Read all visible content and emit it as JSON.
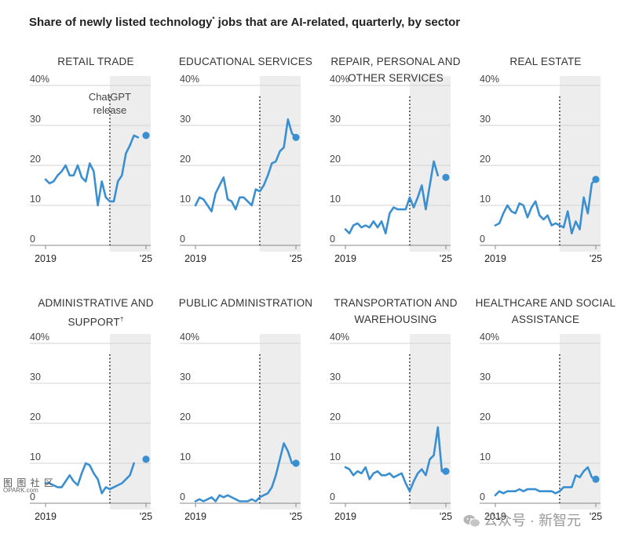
{
  "header": {
    "title_before": "Share of newly listed technology",
    "title_mark": "*",
    "title_after": " jobs that are AI-related, quarterly, by sector"
  },
  "annotation": {
    "line1": "ChatGPT",
    "line2": "release"
  },
  "colors": {
    "line": "#3a8fd1",
    "shade": "#ededed",
    "grid": "#d3d3d3",
    "axis": "#888888",
    "release_line": "#222222"
  },
  "chart_data": [
    {
      "type": "line",
      "title": "RETAIL TRADE",
      "title_mark": "",
      "x": [
        "2019",
        "",
        "",
        "",
        "",
        "",
        "",
        "",
        "",
        "",
        "",
        "",
        "",
        "",
        "",
        "",
        "",
        "",
        "",
        "",
        "",
        "",
        "",
        "",
        "",
        "'25"
      ],
      "ylim": [
        0,
        40
      ],
      "yticks": [
        "40%",
        "30",
        "20",
        "10",
        "0"
      ],
      "xtick_labels": [
        "2019",
        "'25"
      ],
      "release_index": 16,
      "values": [
        16.5,
        15.5,
        16,
        17.5,
        18.5,
        20,
        17.5,
        17.5,
        20,
        17,
        16,
        20.5,
        18.5,
        10,
        16,
        12,
        11,
        11,
        16,
        17.5,
        23,
        25,
        27.5,
        27,
        null,
        27.5
      ]
    },
    {
      "type": "line",
      "title": "EDUCATIONAL SERVICES",
      "title_mark": "",
      "x": [
        "2019",
        "",
        "",
        "",
        "",
        "",
        "",
        "",
        "",
        "",
        "",
        "",
        "",
        "",
        "",
        "",
        "",
        "",
        "",
        "",
        "",
        "",
        "",
        "",
        "",
        "'25"
      ],
      "ylim": [
        0,
        40
      ],
      "yticks": [
        "40%",
        "30",
        "20",
        "10",
        "0"
      ],
      "xtick_labels": [
        "2019",
        "'25"
      ],
      "release_index": 16,
      "values": [
        10,
        12,
        11.5,
        10,
        8.5,
        13,
        15,
        17,
        11.5,
        11,
        9,
        12,
        12,
        11,
        10,
        14,
        13.5,
        15,
        17.5,
        20.5,
        21,
        23.5,
        24.5,
        31.5,
        28,
        27
      ]
    },
    {
      "type": "line",
      "title": "REPAIR, PERSONAL AND OTHER SERVICES",
      "title_mark": "",
      "x": [
        "2019",
        "",
        "",
        "",
        "",
        "",
        "",
        "",
        "",
        "",
        "",
        "",
        "",
        "",
        "",
        "",
        "",
        "",
        "",
        "",
        "",
        "",
        "",
        "",
        "",
        "'25"
      ],
      "ylim": [
        0,
        40
      ],
      "yticks": [
        "40%",
        "30",
        "20",
        "10",
        "0"
      ],
      "xtick_labels": [
        "2019",
        "'25"
      ],
      "release_index": 16,
      "values": [
        4,
        3,
        5,
        5.5,
        4.5,
        5,
        4.5,
        6,
        4.5,
        6,
        3,
        8,
        9.5,
        9,
        9,
        9,
        12,
        9.5,
        12,
        15,
        9,
        15,
        21,
        17.5,
        null,
        17
      ]
    },
    {
      "type": "line",
      "title": "REAL ESTATE",
      "title_mark": "",
      "x": [
        "2019",
        "",
        "",
        "",
        "",
        "",
        "",
        "",
        "",
        "",
        "",
        "",
        "",
        "",
        "",
        "",
        "",
        "",
        "",
        "",
        "",
        "",
        "",
        "",
        "",
        "'25"
      ],
      "ylim": [
        0,
        40
      ],
      "yticks": [
        "40%",
        "30",
        "20",
        "10",
        "0"
      ],
      "xtick_labels": [
        "2019",
        "'25"
      ],
      "release_index": 16,
      "values": [
        5,
        5.5,
        8,
        10,
        8.5,
        8,
        10.5,
        10,
        7,
        9.5,
        11,
        7.5,
        6.5,
        7.5,
        5,
        5.5,
        5,
        4.5,
        8.5,
        3,
        6,
        4,
        12,
        8,
        15.5,
        16.5
      ]
    },
    {
      "type": "line",
      "title": "ADMINISTRATIVE AND SUPPORT",
      "title_mark": "†",
      "x": [
        "2019",
        "",
        "",
        "",
        "",
        "",
        "",
        "",
        "",
        "",
        "",
        "",
        "",
        "",
        "",
        "",
        "",
        "",
        "",
        "",
        "",
        "",
        "",
        "",
        "",
        "'25"
      ],
      "ylim": [
        0,
        40
      ],
      "yticks": [
        "40%",
        "30",
        "20",
        "10",
        "0"
      ],
      "xtick_labels": [
        "2019",
        "'25"
      ],
      "release_index": 16,
      "values": [
        5,
        5,
        4.5,
        4,
        4,
        5.5,
        7,
        5.5,
        4.5,
        7.5,
        10,
        9.5,
        7.5,
        6,
        2.5,
        4,
        3.5,
        4,
        4.5,
        5,
        6,
        7,
        10,
        null,
        null,
        11
      ]
    },
    {
      "type": "line",
      "title": "PUBLIC ADMINISTRATION",
      "title_mark": "",
      "x": [
        "2019",
        "",
        "",
        "",
        "",
        "",
        "",
        "",
        "",
        "",
        "",
        "",
        "",
        "",
        "",
        "",
        "",
        "",
        "",
        "",
        "",
        "",
        "",
        "",
        "",
        "'25"
      ],
      "ylim": [
        0,
        40
      ],
      "yticks": [
        "40%",
        "30",
        "20",
        "10",
        "0"
      ],
      "xtick_labels": [
        "2019",
        "'25"
      ],
      "release_index": 16,
      "values": [
        0.5,
        1,
        0.5,
        1,
        1.5,
        0.5,
        2,
        1.5,
        2,
        1.5,
        1,
        0.5,
        0.5,
        0.5,
        1,
        0.5,
        1.5,
        2,
        2.5,
        4,
        7,
        11,
        15,
        13,
        10,
        10
      ]
    },
    {
      "type": "line",
      "title": "TRANSPORTATION AND WAREHOUSING",
      "title_mark": "",
      "x": [
        "2019",
        "",
        "",
        "",
        "",
        "",
        "",
        "",
        "",
        "",
        "",
        "",
        "",
        "",
        "",
        "",
        "",
        "",
        "",
        "",
        "",
        "",
        "",
        "",
        "",
        "'25"
      ],
      "ylim": [
        0,
        40
      ],
      "yticks": [
        "40%",
        "30",
        "20",
        "10",
        "0"
      ],
      "xtick_labels": [
        "2019",
        "'25"
      ],
      "release_index": 16,
      "values": [
        9,
        8.5,
        7,
        8,
        7.5,
        9,
        6,
        7.5,
        8,
        7,
        7,
        7.5,
        6.5,
        7,
        7.5,
        5,
        3,
        5.5,
        7.5,
        8.5,
        7,
        11,
        12,
        19,
        8,
        8
      ]
    },
    {
      "type": "line",
      "title": "HEALTHCARE AND SOCIAL ASSISTANCE",
      "title_mark": "",
      "x": [
        "2019",
        "",
        "",
        "",
        "",
        "",
        "",
        "",
        "",
        "",
        "",
        "",
        "",
        "",
        "",
        "",
        "",
        "",
        "",
        "",
        "",
        "",
        "",
        "",
        "",
        "'25"
      ],
      "ylim": [
        0,
        40
      ],
      "yticks": [
        "40%",
        "30",
        "20",
        "10",
        "0"
      ],
      "xtick_labels": [
        "2019",
        "'25"
      ],
      "release_index": 16,
      "values": [
        2,
        3,
        2.5,
        3,
        3,
        3,
        3.5,
        3,
        3.5,
        3.5,
        3.5,
        3,
        3,
        3,
        3,
        2.5,
        3,
        4,
        4,
        4,
        7,
        6.5,
        8,
        9,
        6.5,
        6
      ]
    }
  ],
  "watermark": {
    "left_chars": "图 图 社 区",
    "left_text": "OPARK.com",
    "right_text": "公众号 · 新智元"
  }
}
